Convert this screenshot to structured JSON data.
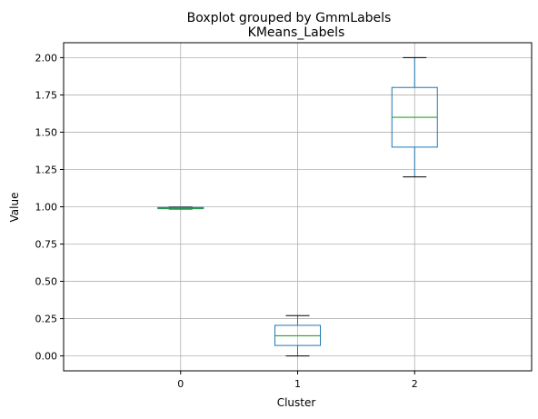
{
  "chart_data": {
    "type": "box",
    "suptitle": "Boxplot grouped by GmmLabels",
    "title": "KMeans_Labels",
    "xlabel": "Cluster",
    "ylabel": "Value",
    "categories": [
      "0",
      "1",
      "2"
    ],
    "ylim": [
      -0.1,
      2.1
    ],
    "yticks": [
      0.0,
      0.25,
      0.5,
      0.75,
      1.0,
      1.25,
      1.5,
      1.75,
      2.0
    ],
    "ytick_labels": [
      "0.00",
      "0.25",
      "0.50",
      "0.75",
      "1.00",
      "1.25",
      "1.50",
      "1.75",
      "2.00"
    ],
    "grid": true,
    "boxes": [
      {
        "category": "0",
        "whisker_low": 0.985,
        "q1": 0.987,
        "median": 0.99,
        "q3": 0.995,
        "whisker_high": 0.998
      },
      {
        "category": "1",
        "whisker_low": 0.0,
        "q1": 0.07,
        "median": 0.135,
        "q3": 0.205,
        "whisker_high": 0.27
      },
      {
        "category": "2",
        "whisker_low": 1.2,
        "q1": 1.4,
        "median": 1.6,
        "q3": 1.8,
        "whisker_high": 2.0
      }
    ],
    "colors": {
      "box": "#1f77b4",
      "median": "#2ca02c",
      "whisker_cap": "#000000",
      "grid": "#b0b0b0",
      "axes": "#000000"
    }
  }
}
